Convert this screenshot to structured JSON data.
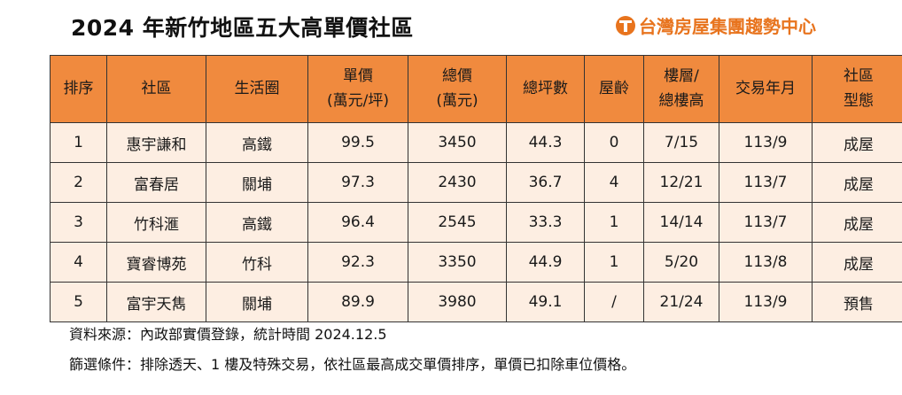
{
  "title": "2024 年新竹地區五大高單價社區",
  "brand": "台灣房屋集團趨勢中心",
  "table": {
    "headers": [
      {
        "line1": "排序",
        "line2": ""
      },
      {
        "line1": "社區",
        "line2": ""
      },
      {
        "line1": "生活圈",
        "line2": ""
      },
      {
        "line1": "單價",
        "line2": "(萬元/坪)"
      },
      {
        "line1": "總價",
        "line2": "(萬元)"
      },
      {
        "line1": "總坪數",
        "line2": ""
      },
      {
        "line1": "屋齡",
        "line2": ""
      },
      {
        "line1": "樓層/",
        "line2": "總樓高"
      },
      {
        "line1": "交易年月",
        "line2": ""
      },
      {
        "line1": "社區",
        "line2": "型態"
      }
    ],
    "rows": [
      [
        "1",
        "惠宇謙和",
        "高鐵",
        "99.5",
        "3450",
        "44.3",
        "0",
        "7/15",
        "113/9",
        "成屋"
      ],
      [
        "2",
        "富春居",
        "關埔",
        "97.3",
        "2430",
        "36.7",
        "4",
        "12/21",
        "113/7",
        "成屋"
      ],
      [
        "3",
        "竹科滙",
        "高鐵",
        "96.4",
        "2545",
        "33.3",
        "1",
        "14/14",
        "113/7",
        "成屋"
      ],
      [
        "4",
        "寶睿博苑",
        "竹科",
        "92.3",
        "3350",
        "44.9",
        "1",
        "5/20",
        "113/8",
        "成屋"
      ],
      [
        "5",
        "富宇天雋",
        "關埔",
        "89.9",
        "3980",
        "49.1",
        "/",
        "21/24",
        "113/9",
        "預售"
      ]
    ]
  },
  "footer": {
    "source": "資料來源：內政部實價登錄，統計時間 2024.12.5",
    "criteria": "篩選條件：排除透天、1 樓及特殊交易，依社區最高成交單價排序，單價已扣除車位價格。"
  }
}
